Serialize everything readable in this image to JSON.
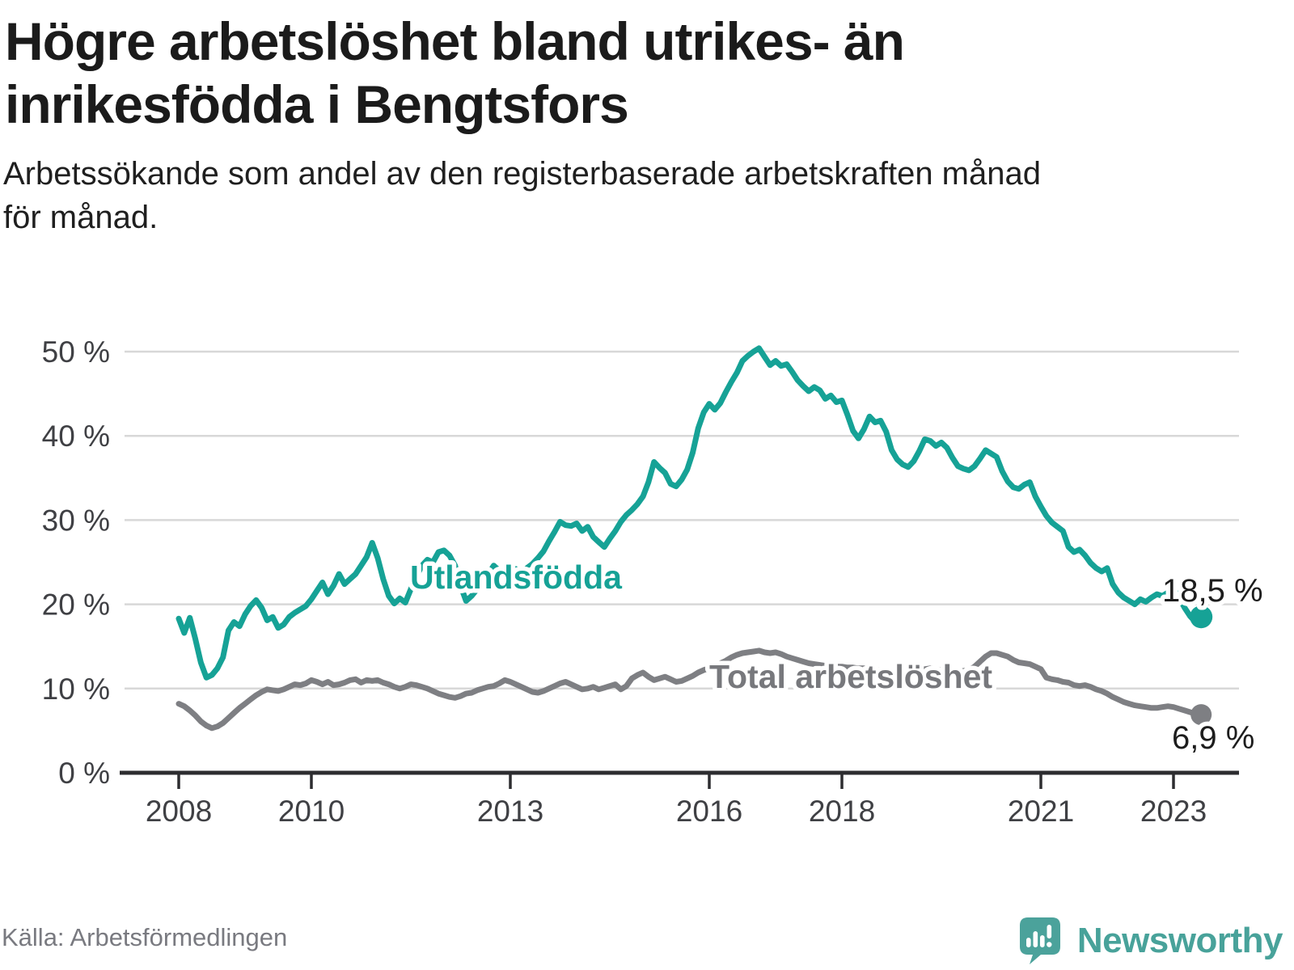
{
  "header": {
    "title_line1": "Högre arbetslöshet bland utrikes- än",
    "title_line2": "inrikesfödda i Bengtsfors",
    "subtitle_line1": "Arbetssökande som andel av den registerbaserade arbetskraften månad",
    "subtitle_line2": "för månad."
  },
  "footer": {
    "source": "Källa: Arbetsförmedlingen",
    "brand": "Newsworthy"
  },
  "colors": {
    "foreign_born_line": "#16a296",
    "total_line": "#7e7f83",
    "gridline": "#d8d8d8",
    "axis": "#2d2d30",
    "tick_label": "#3f4044",
    "value_label": "#1d1d1d",
    "total_label": "#77787c",
    "brand_teal": "#48a29a"
  },
  "chart_data": {
    "type": "line",
    "title": "Arbetssökande som andel av den registerbaserade arbetskraften månad för månad",
    "x_start": "2008-01",
    "x_end": "2023-06",
    "frequency": "monthly",
    "x_ticks": [
      2008,
      2010,
      2013,
      2016,
      2018,
      2021,
      2023
    ],
    "y_tick_values": [
      0,
      10,
      20,
      30,
      40,
      50
    ],
    "y_ticks": [
      "0 %",
      "10 %",
      "20 %",
      "30 %",
      "40 %",
      "50 %"
    ],
    "ylim": [
      0,
      52
    ],
    "grid": "horizontal",
    "legend_position": "inline-labels",
    "series": [
      {
        "name": "Utlandsfödda",
        "end_label": "18,5 %",
        "end_value": 18.5,
        "values": [
          18.3,
          16.6,
          18.4,
          15.9,
          13.1,
          11.3,
          11.6,
          12.4,
          13.7,
          16.9,
          17.9,
          17.4,
          18.8,
          19.8,
          20.5,
          19.6,
          18.1,
          18.5,
          17.2,
          17.6,
          18.5,
          19.0,
          19.4,
          19.8,
          20.6,
          21.6,
          22.6,
          21.2,
          22.2,
          23.6,
          22.4,
          23.0,
          23.6,
          24.6,
          25.6,
          27.3,
          25.5,
          23.0,
          21.0,
          20.1,
          20.7,
          20.2,
          21.8,
          23.3,
          24.6,
          25.3,
          25.0,
          26.2,
          26.4,
          25.8,
          24.6,
          22.2,
          20.4,
          21.0,
          21.8,
          22.8,
          23.6,
          24.6,
          24.0,
          23.4,
          23.8,
          24.2,
          23.6,
          24.3,
          24.8,
          25.5,
          26.3,
          27.5,
          28.6,
          29.8,
          29.4,
          29.3,
          29.6,
          28.7,
          29.2,
          28.0,
          27.4,
          26.8,
          27.8,
          28.7,
          29.8,
          30.6,
          31.2,
          31.9,
          32.8,
          34.5,
          36.9,
          36.2,
          35.6,
          34.3,
          34.0,
          34.8,
          36.0,
          38.0,
          40.9,
          42.8,
          43.8,
          43.1,
          43.9,
          45.2,
          46.4,
          47.5,
          48.9,
          49.5,
          50.0,
          50.4,
          49.4,
          48.4,
          48.9,
          48.3,
          48.5,
          47.6,
          46.6,
          45.9,
          45.3,
          45.8,
          45.4,
          44.4,
          44.8,
          44.0,
          44.2,
          42.5,
          40.6,
          39.7,
          40.8,
          42.3,
          41.6,
          41.8,
          40.5,
          38.3,
          37.2,
          36.6,
          36.3,
          37.0,
          38.2,
          39.6,
          39.4,
          38.8,
          39.2,
          38.6,
          37.4,
          36.4,
          36.1,
          35.9,
          36.4,
          37.3,
          38.3,
          37.9,
          37.5,
          35.8,
          34.6,
          33.9,
          33.7,
          34.2,
          34.5,
          32.8,
          31.6,
          30.5,
          29.7,
          29.2,
          28.7,
          26.8,
          26.2,
          26.5,
          25.8,
          24.9,
          24.3,
          23.9,
          24.3,
          22.4,
          21.4,
          20.8,
          20.4,
          20.0,
          20.6,
          20.3,
          20.8,
          21.2,
          21.0,
          21.4,
          21.8,
          20.8,
          19.6,
          18.6,
          17.9,
          18.5
        ]
      },
      {
        "name": "Total arbetslöshet",
        "end_label": "6,9 %",
        "end_value": 6.9,
        "values": [
          8.2,
          7.9,
          7.4,
          6.8,
          6.1,
          5.6,
          5.3,
          5.5,
          5.9,
          6.5,
          7.1,
          7.7,
          8.2,
          8.7,
          9.2,
          9.6,
          9.9,
          9.8,
          9.7,
          9.9,
          10.2,
          10.5,
          10.4,
          10.6,
          11.0,
          10.8,
          10.5,
          10.8,
          10.4,
          10.5,
          10.7,
          11.0,
          11.1,
          10.7,
          11.0,
          10.9,
          11.0,
          10.7,
          10.5,
          10.2,
          10.0,
          10.2,
          10.5,
          10.4,
          10.2,
          10.0,
          9.7,
          9.4,
          9.2,
          9.0,
          8.9,
          9.1,
          9.4,
          9.5,
          9.8,
          10.0,
          10.2,
          10.3,
          10.6,
          11.0,
          10.8,
          10.5,
          10.2,
          9.9,
          9.6,
          9.5,
          9.7,
          10.0,
          10.3,
          10.6,
          10.8,
          10.5,
          10.2,
          9.9,
          10.0,
          10.2,
          9.9,
          10.1,
          10.3,
          10.5,
          9.9,
          10.3,
          11.2,
          11.6,
          11.9,
          11.4,
          11.0,
          11.2,
          11.4,
          11.1,
          10.8,
          10.9,
          11.2,
          11.5,
          11.9,
          12.2,
          12.4,
          12.7,
          13.0,
          13.3,
          13.7,
          14.0,
          14.2,
          14.3,
          14.4,
          14.5,
          14.3,
          14.2,
          14.3,
          14.1,
          13.8,
          13.6,
          13.4,
          13.2,
          13.0,
          12.9,
          12.8,
          12.7,
          12.7,
          12.6,
          12.6,
          12.5,
          12.5,
          12.4,
          12.4,
          12.3,
          12.2,
          12.2,
          12.1,
          12.0,
          12.0,
          11.9,
          12.0,
          12.1,
          12.2,
          12.3,
          12.4,
          12.3,
          12.2,
          12.1,
          12.0,
          12.0,
          12.1,
          12.2,
          12.6,
          13.2,
          13.8,
          14.2,
          14.2,
          14.0,
          13.8,
          13.4,
          13.1,
          13.0,
          12.9,
          12.6,
          12.3,
          11.3,
          11.1,
          11.0,
          10.8,
          10.7,
          10.4,
          10.3,
          10.4,
          10.2,
          9.9,
          9.7,
          9.4,
          9.0,
          8.7,
          8.4,
          8.2,
          8.0,
          7.9,
          7.8,
          7.7,
          7.7,
          7.8,
          7.9,
          7.8,
          7.6,
          7.4,
          7.2,
          7.0,
          6.9
        ]
      }
    ]
  }
}
